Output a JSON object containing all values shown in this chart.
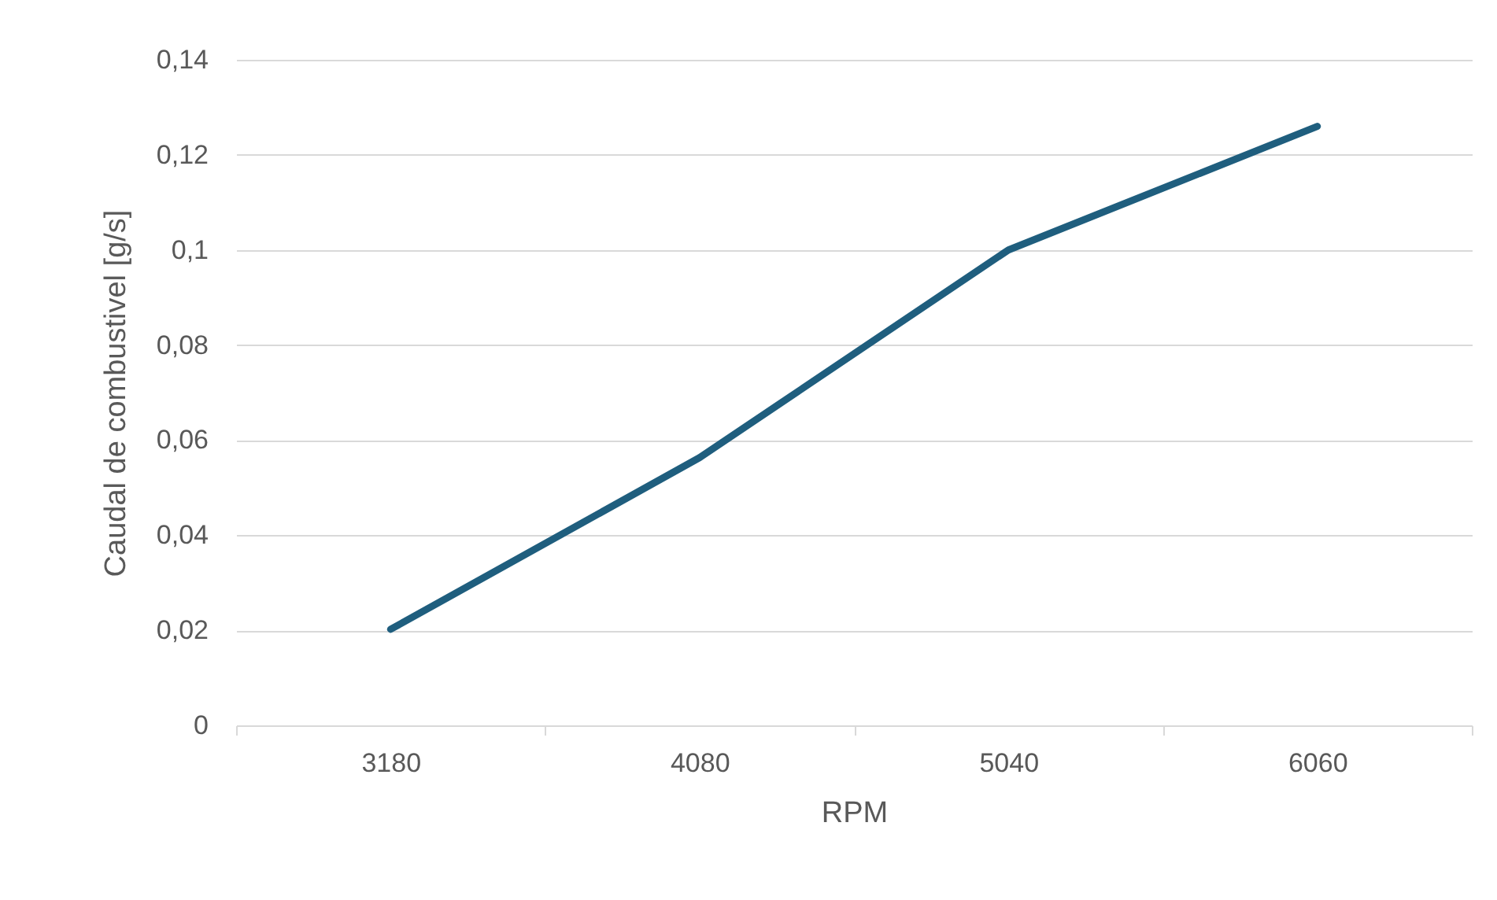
{
  "chart_data": {
    "type": "line",
    "xlabel": "RPM",
    "ylabel": "Caudal de combustivel [g/s]",
    "categories": [
      "3180",
      "4080",
      "5040",
      "6060"
    ],
    "series": [
      {
        "color": "#1f5e7e",
        "values": [
          0.0202,
          0.0563,
          0.1,
          0.126
        ]
      }
    ],
    "ylim": [
      0,
      0.14
    ],
    "yticks": [
      0,
      {
        "value": 0.02,
        "label": "0,02"
      },
      {
        "value": 0.04,
        "label": "0,04"
      },
      {
        "value": 0.06,
        "label": "0,06"
      },
      {
        "value": 0.08,
        "label": "0,08"
      },
      {
        "value": 0.1,
        "label": "0,1"
      },
      {
        "value": 0.12,
        "label": "0,12"
      },
      {
        "value": 0.14,
        "label": "0,14"
      }
    ],
    "grid": "y",
    "marker": "none",
    "line_style": "solid"
  }
}
